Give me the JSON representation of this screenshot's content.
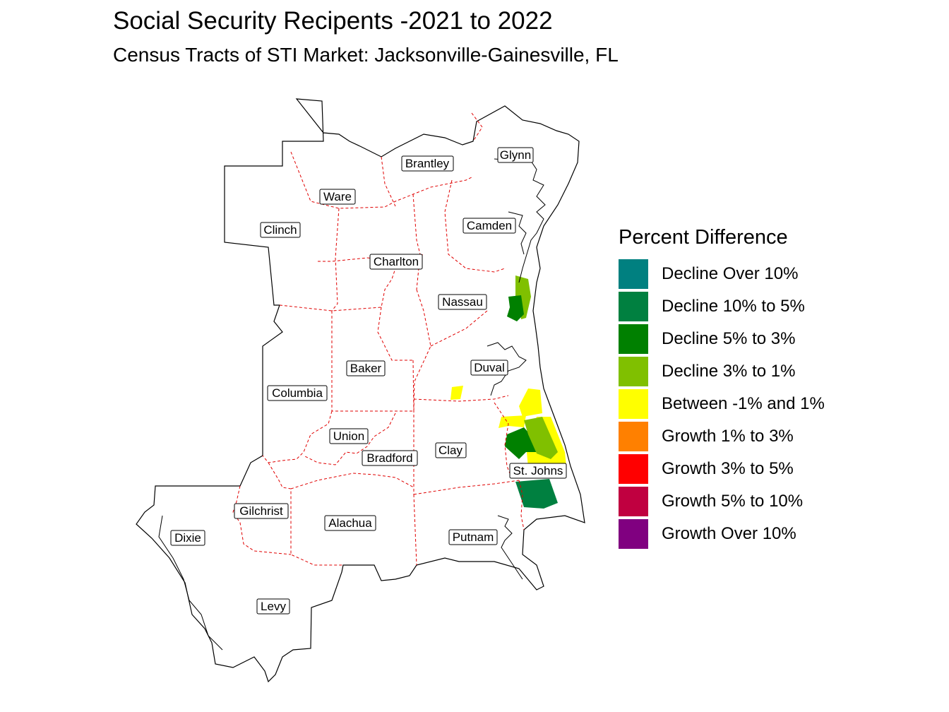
{
  "title": "Social Security Recipents -2021 to 2022",
  "subtitle": "Census Tracts of STI Market: Jacksonville-Gainesville, FL",
  "legend": {
    "title": "Percent Difference",
    "items": [
      {
        "label": "Decline Over 10%",
        "color": "#008080"
      },
      {
        "label": "Decline 10% to 5%",
        "color": "#008040"
      },
      {
        "label": "Decline 5% to 3%",
        "color": "#008000"
      },
      {
        "label": "Decline 3% to 1%",
        "color": "#80c000"
      },
      {
        "label": "Between -1% and 1%",
        "color": "#ffff00"
      },
      {
        "label": "Growth 1% to 3%",
        "color": "#ff8000"
      },
      {
        "label": "Growth 3% to 5%",
        "color": "#ff0000"
      },
      {
        "label": "Growth 5% to 10%",
        "color": "#c00040"
      },
      {
        "label": "Growth Over 10%",
        "color": "#800080"
      }
    ]
  },
  "counties": [
    "Glynn",
    "Brantley",
    "Ware",
    "Clinch",
    "Camden",
    "Charlton",
    "Nassau",
    "Baker",
    "Duval",
    "Columbia",
    "Union",
    "Clay",
    "Bradford",
    "St. Johns",
    "Gilchrist",
    "Alachua",
    "Dixie",
    "Putnam",
    "Levy"
  ],
  "colors": {
    "outline": "#000000",
    "county_border": "#e00000"
  }
}
